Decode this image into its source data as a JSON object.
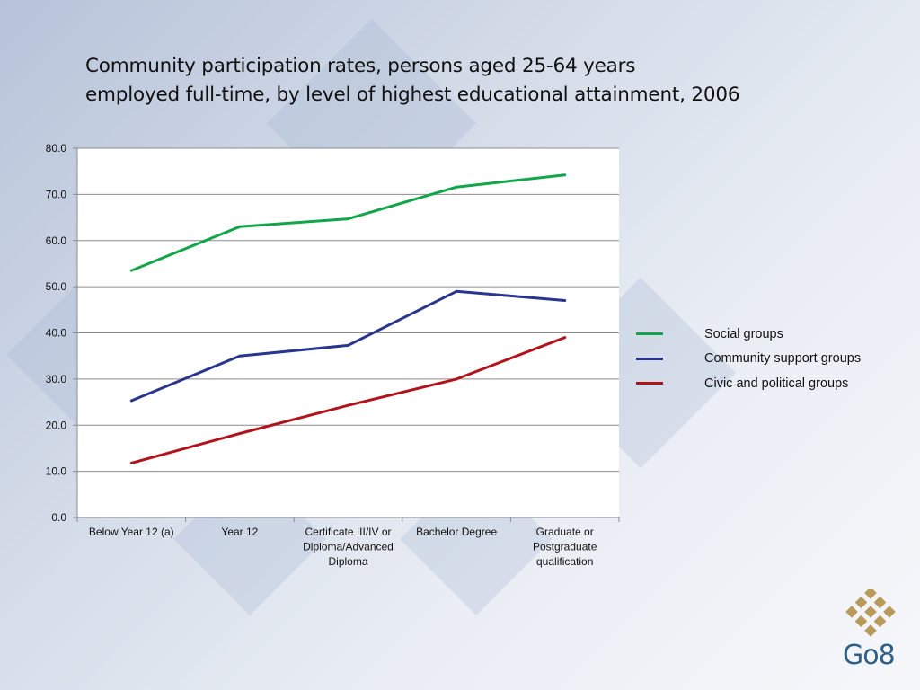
{
  "slide": {
    "title_line1": "Community participation rates, persons aged 25-64 years",
    "title_line2": "employed full-time, by level of highest educational attainment, 2006",
    "logo_text": "Go8",
    "logo_color": "#2e5f86",
    "logo_mark_color": "#b99a5a"
  },
  "chart_data": {
    "type": "line",
    "title": "Community participation rates, persons aged 25-64 years employed full-time, by level of highest educational attainment, 2006",
    "categories": [
      [
        "Below Year 12 (a)"
      ],
      [
        "Year 12"
      ],
      [
        "Certificate III/IV or",
        "Diploma/Advanced",
        "Diploma"
      ],
      [
        "Bachelor Degree"
      ],
      [
        "Graduate or",
        "Postgraduate",
        "qualification"
      ]
    ],
    "ylim": [
      0,
      80
    ],
    "yticks": [
      "0.0",
      "10.0",
      "20.0",
      "30.0",
      "40.0",
      "50.0",
      "60.0",
      "70.0",
      "80.0"
    ],
    "grid": true,
    "legend_position": "right",
    "series": [
      {
        "name": "Social groups",
        "color": "#12a54a",
        "values": [
          53.5,
          63.0,
          64.7,
          71.6,
          74.2
        ]
      },
      {
        "name": "Community support groups",
        "color": "#2a3590",
        "values": [
          25.3,
          35.0,
          37.3,
          49.0,
          47.0
        ]
      },
      {
        "name": "Civic and political groups",
        "color": "#b2121a",
        "values": [
          11.8,
          18.2,
          24.3,
          30.0,
          39.0
        ]
      }
    ]
  }
}
